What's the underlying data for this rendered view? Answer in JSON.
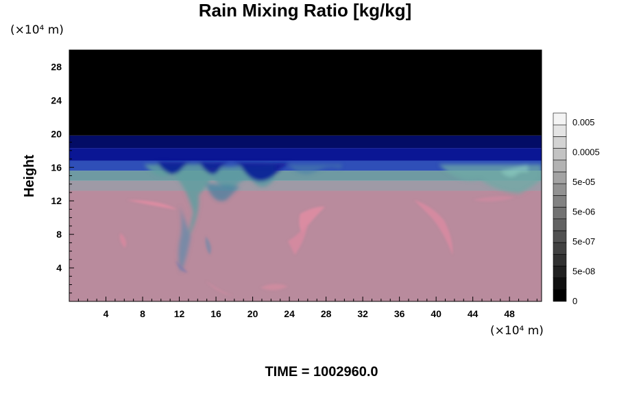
{
  "chart_data": {
    "type": "heatmap",
    "title": "Rain Mixing Ratio [kg/kg]",
    "xlabel": "",
    "ylabel": "Height",
    "x_unit": "(×10⁴ m)",
    "y_unit": "(×10⁴ m)",
    "xlim": [
      0,
      51.5
    ],
    "ylim": [
      0,
      30
    ],
    "x_ticks": [
      4,
      8,
      12,
      16,
      20,
      24,
      28,
      32,
      36,
      40,
      44,
      48
    ],
    "y_ticks": [
      4,
      8,
      12,
      16,
      20,
      24,
      28
    ],
    "layers": [
      {
        "y_from": 0,
        "y_to": 13.2,
        "color": "#b98b9d"
      },
      {
        "y_from": 13.2,
        "y_to": 14.4,
        "color": "#9e9aa6"
      },
      {
        "y_from": 14.4,
        "y_to": 15.6,
        "color": "#6f9aa2"
      },
      {
        "y_from": 15.6,
        "y_to": 16.8,
        "color": "#2f4fb8"
      },
      {
        "y_from": 16.8,
        "y_to": 18.3,
        "color": "#0a1694"
      },
      {
        "y_from": 18.3,
        "y_to": 19.8,
        "color": "#030c66"
      },
      {
        "y_from": 19.8,
        "y_to": 30,
        "color": "#000000"
      }
    ],
    "colorbar": {
      "labels": [
        "0.005",
        "0.0005",
        "5e-05",
        "5e-06",
        "5e-07",
        "5e-08",
        "0"
      ],
      "levels": 16,
      "color_low": "#000000",
      "color_high": "#f4f4f4"
    },
    "annotation": "TIME = 1002960.0"
  }
}
